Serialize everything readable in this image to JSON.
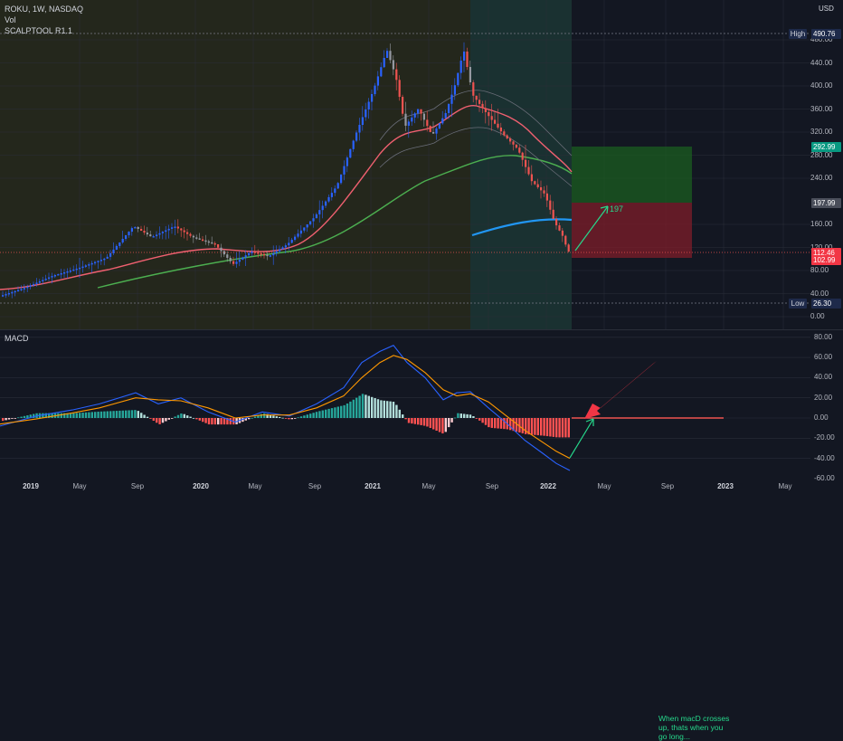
{
  "legend": {
    "symbol_line": "ROKU, 1W, NASDAQ",
    "vol": "Vol",
    "indicator": "SCALPTOOL R1.1"
  },
  "currency": "USD",
  "price_axis": [
    "480.00",
    "440.00",
    "400.00",
    "360.00",
    "320.00",
    "280.00",
    "240.00",
    "160.00",
    "120.00",
    "80.00",
    "40.00",
    "0.00"
  ],
  "price_axis_values": [
    480,
    440,
    400,
    360,
    320,
    280,
    240,
    160,
    120,
    80,
    40,
    0
  ],
  "badges": {
    "high_tag": "High",
    "high": "490.76",
    "target": "292.99",
    "entry": "197.99",
    "last": "112.46",
    "stop": "102.99",
    "low_tag": "Low",
    "low": "26.30"
  },
  "position_label": "197",
  "macd": {
    "title": "MACD",
    "axis": [
      "80.00",
      "60.00",
      "40.00",
      "20.00",
      "0.00",
      "-20.00",
      "-40.00",
      "-60.00"
    ],
    "axis_values": [
      80,
      60,
      40,
      20,
      0,
      -20,
      -40,
      -60
    ]
  },
  "annotation": {
    "lines": [
      "When macD crosses",
      "up, thats when you",
      "go long..."
    ]
  },
  "time_axis": [
    {
      "label": "2019",
      "strong": true
    },
    {
      "label": "May",
      "strong": false
    },
    {
      "label": "Sep",
      "strong": false
    },
    {
      "label": "2020",
      "strong": true
    },
    {
      "label": "May",
      "strong": false
    },
    {
      "label": "Sep",
      "strong": false
    },
    {
      "label": "2021",
      "strong": true
    },
    {
      "label": "May",
      "strong": false
    },
    {
      "label": "Sep",
      "strong": false
    },
    {
      "label": "2022",
      "strong": true
    },
    {
      "label": "May",
      "strong": false
    },
    {
      "label": "Sep",
      "strong": false
    },
    {
      "label": "2023",
      "strong": true
    },
    {
      "label": "May",
      "strong": false
    }
  ],
  "colors": {
    "up": "#26a69a",
    "up_bar": "#2962ff",
    "down": "#ef5350",
    "ema_fast": "#f06070",
    "ema_slow": "#4caf50",
    "ema_long": "#2196f3",
    "macd_line": "#2962ff",
    "signal_line": "#ff9800",
    "target_zone": "#1b5e20",
    "stop_zone": "#7f1d2a",
    "annotation": "#26d98c",
    "arrow": "#f23645"
  },
  "chart_data": {
    "type": "line",
    "title": "ROKU, 1W, NASDAQ",
    "ylim": [
      0,
      490.76
    ],
    "x": [
      "2019",
      "May",
      "Sep",
      "2020",
      "May",
      "Sep",
      "2021",
      "May",
      "Sep",
      "2022"
    ],
    "series": [
      {
        "name": "ROKU",
        "values": [
          33,
          80,
          140,
          120,
          90,
          110,
          330,
          390,
          250,
          112.46
        ]
      }
    ],
    "levels": {
      "high": 490.76,
      "low": 26.3,
      "entry": 197.99,
      "target": 292.99,
      "stop": 102.99,
      "last": 112.46
    }
  }
}
